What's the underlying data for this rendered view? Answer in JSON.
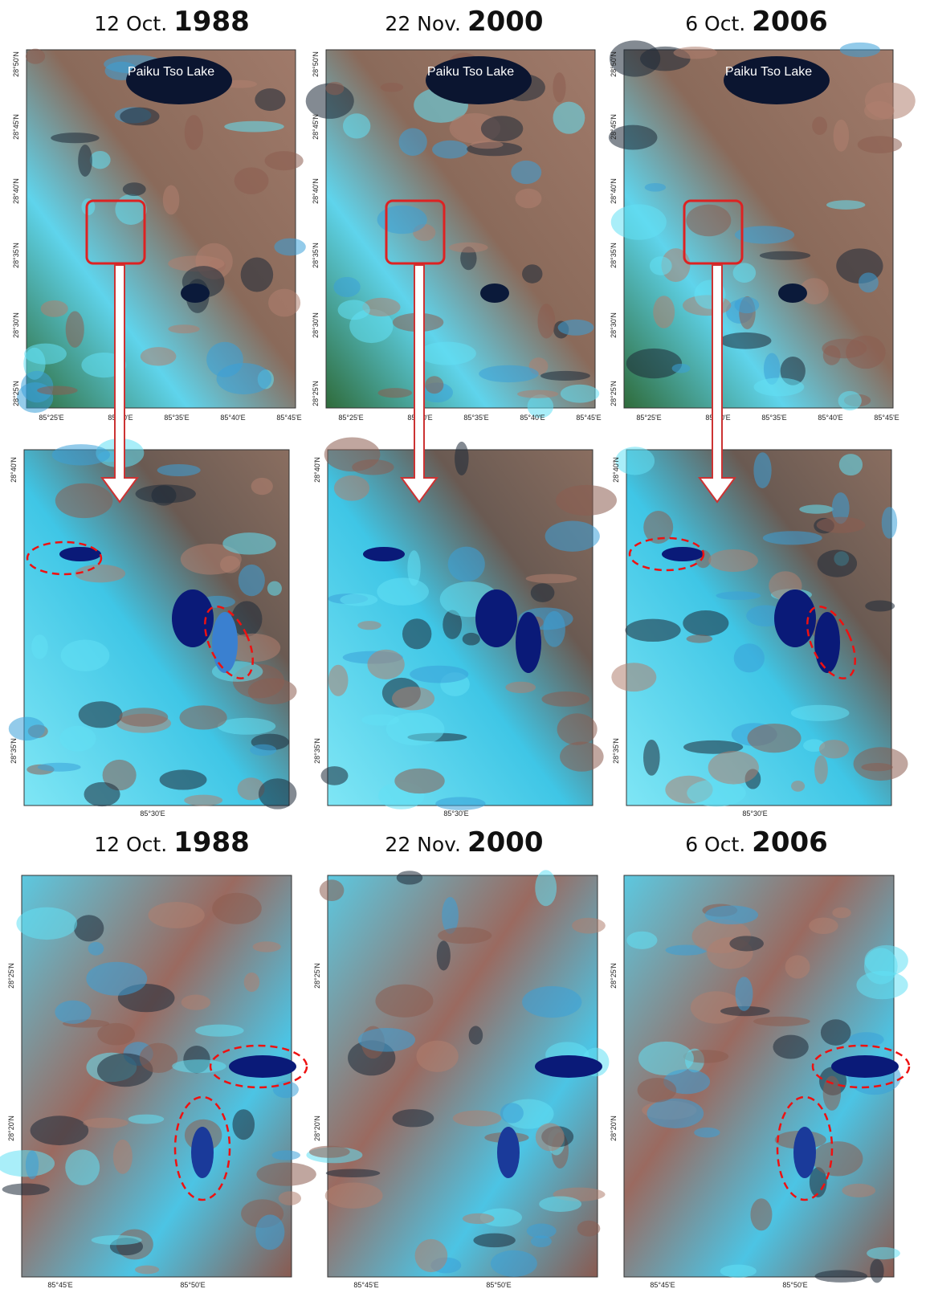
{
  "header_titles": [
    {
      "date": "12 Oct.",
      "year": "1988"
    },
    {
      "date": "22 Nov.",
      "year": "2000"
    },
    {
      "date": "6 Oct.",
      "year": "2006"
    }
  ],
  "overview_maps": {
    "lake_label": "Paiku Tso Lake",
    "lat_labels": [
      "28°50'N",
      "28°45'N",
      "28°40'N",
      "28°35'N",
      "28°30'N",
      "28°25'N"
    ],
    "lon_labels": [
      "85°25'E",
      "85°30'E",
      "85°35'E",
      "85°40'E",
      "85°45'E"
    ]
  },
  "detail_maps": {
    "lat_labels": [
      "28°40'N",
      "28°35'N"
    ],
    "lon_labels": [
      "85°30'E"
    ]
  },
  "lower_titles": [
    {
      "date": "12 Oct.",
      "year": "1988"
    },
    {
      "date": "22 Nov.",
      "year": "2000"
    },
    {
      "date": "6 Oct.",
      "year": "2006"
    }
  ],
  "lower_maps": {
    "lat_labels": [
      "28°25'N",
      "28°20'N"
    ],
    "lon_labels": [
      "85°45'E",
      "85°50'E"
    ]
  }
}
